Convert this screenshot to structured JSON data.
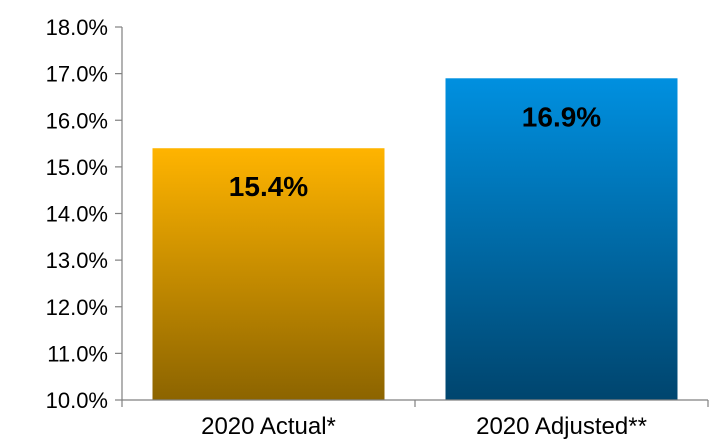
{
  "chart_data": {
    "type": "bar",
    "title": "",
    "xlabel": "",
    "ylabel": "",
    "categories": [
      "2020 Actual*",
      "2020 Adjusted**"
    ],
    "values": [
      15.4,
      16.9
    ],
    "data_labels": [
      "15.4%",
      "16.9%"
    ],
    "ylim": [
      10.0,
      18.0
    ],
    "y_ticks": [
      10.0,
      11.0,
      12.0,
      13.0,
      14.0,
      15.0,
      16.0,
      17.0,
      18.0
    ],
    "y_tick_labels": [
      "10.0%",
      "11.0%",
      "12.0%",
      "13.0%",
      "14.0%",
      "15.0%",
      "16.0%",
      "17.0%",
      "18.0%"
    ],
    "grid": false,
    "legend": "none",
    "bar_colors": [
      {
        "top": "#FFB400",
        "bottom": "#8C6400"
      },
      {
        "top": "#0090E0",
        "bottom": "#00456E"
      }
    ],
    "axis_color": "#808080"
  }
}
